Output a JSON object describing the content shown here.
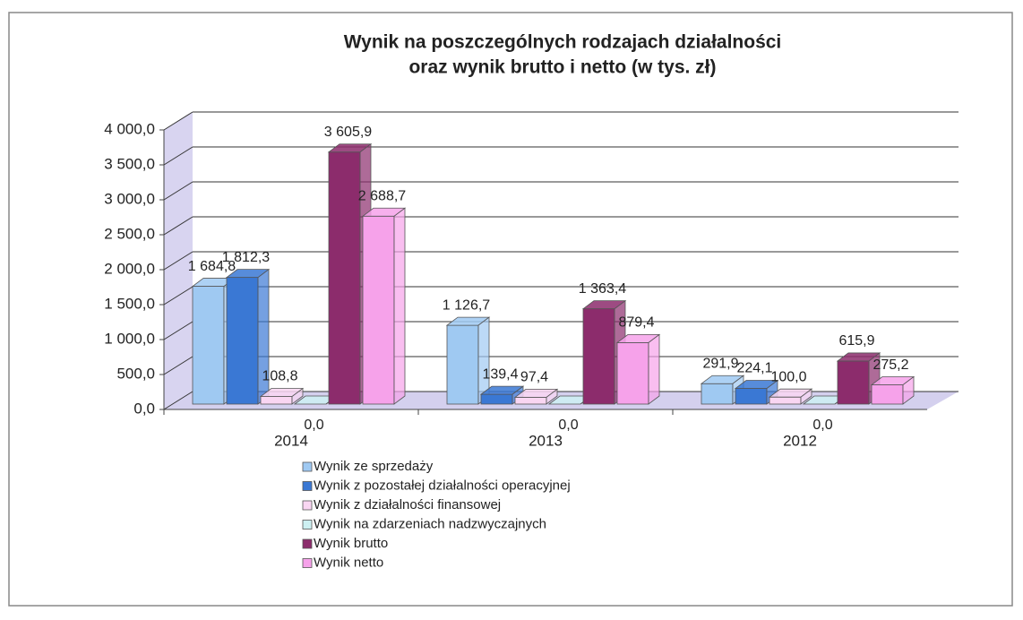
{
  "chart_data": {
    "type": "bar3d",
    "title": [
      "Wynik na poszczególnych rodzajach działalności",
      "oraz wynik brutto i netto (w tys. zł)"
    ],
    "categories": [
      "2014",
      "2013",
      "2012"
    ],
    "ylim": [
      0,
      4000
    ],
    "yticks": [
      {
        "value": 0,
        "label": "0,0"
      },
      {
        "value": 500,
        "label": "500,0"
      },
      {
        "value": 1000,
        "label": "1 000,0"
      },
      {
        "value": 1500,
        "label": "1 500,0"
      },
      {
        "value": 2000,
        "label": "2 000,0"
      },
      {
        "value": 2500,
        "label": "2 500,0"
      },
      {
        "value": 3000,
        "label": "3 000,0"
      },
      {
        "value": 3500,
        "label": "3 500,0"
      },
      {
        "value": 4000,
        "label": "4 000,0"
      }
    ],
    "grid": true,
    "series": [
      {
        "name": "Wynik ze sprzedaży",
        "color": "#9fc9f2",
        "values": [
          1684.8,
          1126.7,
          291.9
        ],
        "value_labels": [
          "1 684,8",
          "1 126,7",
          "291,9"
        ]
      },
      {
        "name": "Wynik z pozostałej działalności operacyjnej",
        "color": "#3a78d4",
        "values": [
          1812.3,
          139.4,
          224.1
        ],
        "value_labels": [
          "1 812,3",
          "139,4",
          "224,1"
        ]
      },
      {
        "name": "Wynik z działalności finansowej",
        "color": "#f9d6f2",
        "values": [
          108.8,
          97.4,
          100.0
        ],
        "value_labels": [
          "108,8",
          "97,4",
          "100,0"
        ]
      },
      {
        "name": "Wynik na zdarzeniach nadzwyczajnych",
        "color": "#cdf0f2",
        "values": [
          0.0,
          0.0,
          0.0
        ],
        "value_labels": [
          "0,0",
          "0,0",
          "0,0"
        ]
      },
      {
        "name": "Wynik brutto",
        "color": "#8c2c6c",
        "values": [
          3605.9,
          1363.4,
          615.9
        ],
        "value_labels": [
          "3 605,9",
          "1 363,4",
          "615,9"
        ]
      },
      {
        "name": "Wynik netto",
        "color": "#f6a2ea",
        "values": [
          2688.7,
          879.4,
          275.2
        ],
        "value_labels": [
          "2 688,7",
          "879,4",
          "275,2"
        ]
      }
    ]
  }
}
